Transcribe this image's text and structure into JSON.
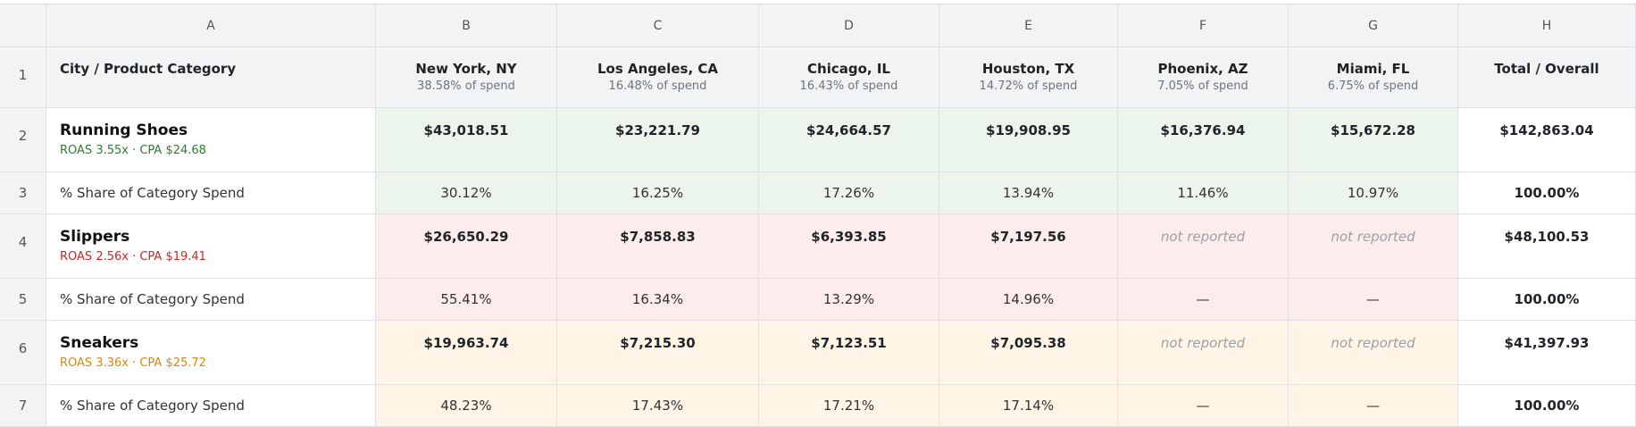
{
  "columns": [
    "A",
    "B",
    "C",
    "D",
    "E",
    "F",
    "G",
    "H"
  ],
  "header": {
    "row_number": "1",
    "label": "City / Product Category",
    "cities": [
      {
        "name": "New York, NY",
        "share": "38.58% of spend"
      },
      {
        "name": "Los Angeles, CA",
        "share": "16.48% of spend"
      },
      {
        "name": "Chicago, IL",
        "share": "16.43% of spend"
      },
      {
        "name": "Houston, TX",
        "share": "14.72% of spend"
      },
      {
        "name": "Phoenix, AZ",
        "share": "7.05% of spend"
      },
      {
        "name": "Miami, FL",
        "share": "6.75% of spend"
      }
    ],
    "total_label": "Total / Overall"
  },
  "categories": [
    {
      "row_number": "2",
      "name": "Running Shoes",
      "metrics": "ROAS 3.55x · CPA $24.68",
      "metric_color": "#2e7d32",
      "values": [
        "$43,018.51",
        "$23,221.79",
        "$24,664.57",
        "$19,908.95",
        "$16,376.94",
        "$15,672.28"
      ],
      "total": "$142,863.04",
      "share_row_number": "3",
      "share_label": "% Share of Category Spend",
      "shares": [
        "30.12%",
        "16.25%",
        "17.26%",
        "13.94%",
        "11.46%",
        "10.97%"
      ],
      "share_total": "100.00%"
    },
    {
      "row_number": "4",
      "name": "Slippers",
      "metrics": "ROAS 2.56x · CPA $19.41",
      "metric_color": "#c62828",
      "values": [
        "$26,650.29",
        "$7,858.83",
        "$6,393.85",
        "$7,197.56",
        "not reported",
        "not reported"
      ],
      "total": "$48,100.53",
      "share_row_number": "5",
      "share_label": "% Share of Category Spend",
      "shares": [
        "55.41%",
        "16.34%",
        "13.29%",
        "14.96%",
        "—",
        "—"
      ],
      "share_total": "100.00%"
    },
    {
      "row_number": "6",
      "name": "Sneakers",
      "metrics": "ROAS 3.36x · CPA $25.72",
      "metric_color": "#d68910",
      "values": [
        "$19,963.74",
        "$7,215.30",
        "$7,123.51",
        "$7,095.38",
        "not reported",
        "not reported"
      ],
      "total": "$41,397.93",
      "share_row_number": "7",
      "share_label": "% Share of Category Spend",
      "shares": [
        "48.23%",
        "17.43%",
        "17.21%",
        "17.14%",
        "—",
        "—"
      ],
      "share_total": "100.00%"
    }
  ],
  "colors": {
    "running_shoes_bg": "#ebf5ec",
    "slippers_bg": "#fdecec",
    "sneakers_bg": "#fff4e6"
  }
}
